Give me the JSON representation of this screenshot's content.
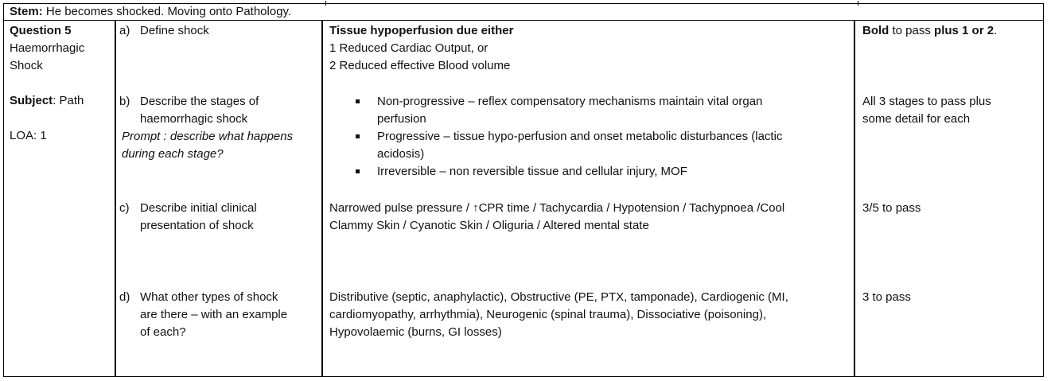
{
  "stem": {
    "label": "Stem:",
    "text": "He becomes shocked. Moving onto Pathology."
  },
  "left": {
    "question": "Question 5",
    "title_line1": "Haemorrhagic",
    "title_line2": "Shock",
    "subject_label": "Subject",
    "subject_value": ": Path",
    "loa": "LOA: 1"
  },
  "parts": [
    {
      "letter": "a)",
      "question": "Define shock",
      "answer_bold": "Tissue hypoperfusion due either",
      "answer_lines": [
        "1 Reduced Cardiac Output, or",
        "2 Reduced effective Blood volume"
      ],
      "pass_bold1": "Bold",
      "pass_text": " to pass ",
      "pass_bold2": "plus 1 or 2",
      "pass_end": "."
    },
    {
      "letter": "b)",
      "question_line1": "Describe the stages of",
      "question_line2": "haemorrhagic shock",
      "prompt_line1": "Prompt : describe what happens",
      "prompt_line2": "during each stage?",
      "bullets": [
        {
          "l1": "Non-progressive – reflex compensatory mechanisms maintain vital organ",
          "l2": "perfusion"
        },
        {
          "l1": "Progressive – tissue hypo-perfusion and onset metabolic disturbances (lactic",
          "l2": "acidosis)"
        },
        {
          "l1": "Irreversible – non reversible tissue and cellular injury, MOF",
          "l2": ""
        }
      ],
      "pass_line1": "All 3 stages to pass plus",
      "pass_line2": "some detail for each"
    },
    {
      "letter": "c)",
      "question_line1": "Describe initial clinical",
      "question_line2": "presentation of shock",
      "answer_line1": "Narrowed pulse pressure / ↑CPR time / Tachycardia / Hypotension / Tachypnoea /Cool",
      "answer_line2": "Clammy Skin / Cyanotic Skin / Oliguria / Altered mental state",
      "pass": "3/5 to pass"
    },
    {
      "letter": "d)",
      "question_line1": "What other types of shock",
      "question_line2": "are there – with an example",
      "question_line3": "of each?",
      "answer_line1": "Distributive (septic, anaphylactic), Obstructive (PE, PTX, tamponade), Cardiogenic (MI,",
      "answer_line2": "cardiomyopathy, arrhythmia), Neurogenic (spinal trauma), Dissociative (poisoning),",
      "answer_line3": "Hypovolaemic (burns, GI losses)",
      "pass": "3 to pass"
    }
  ]
}
